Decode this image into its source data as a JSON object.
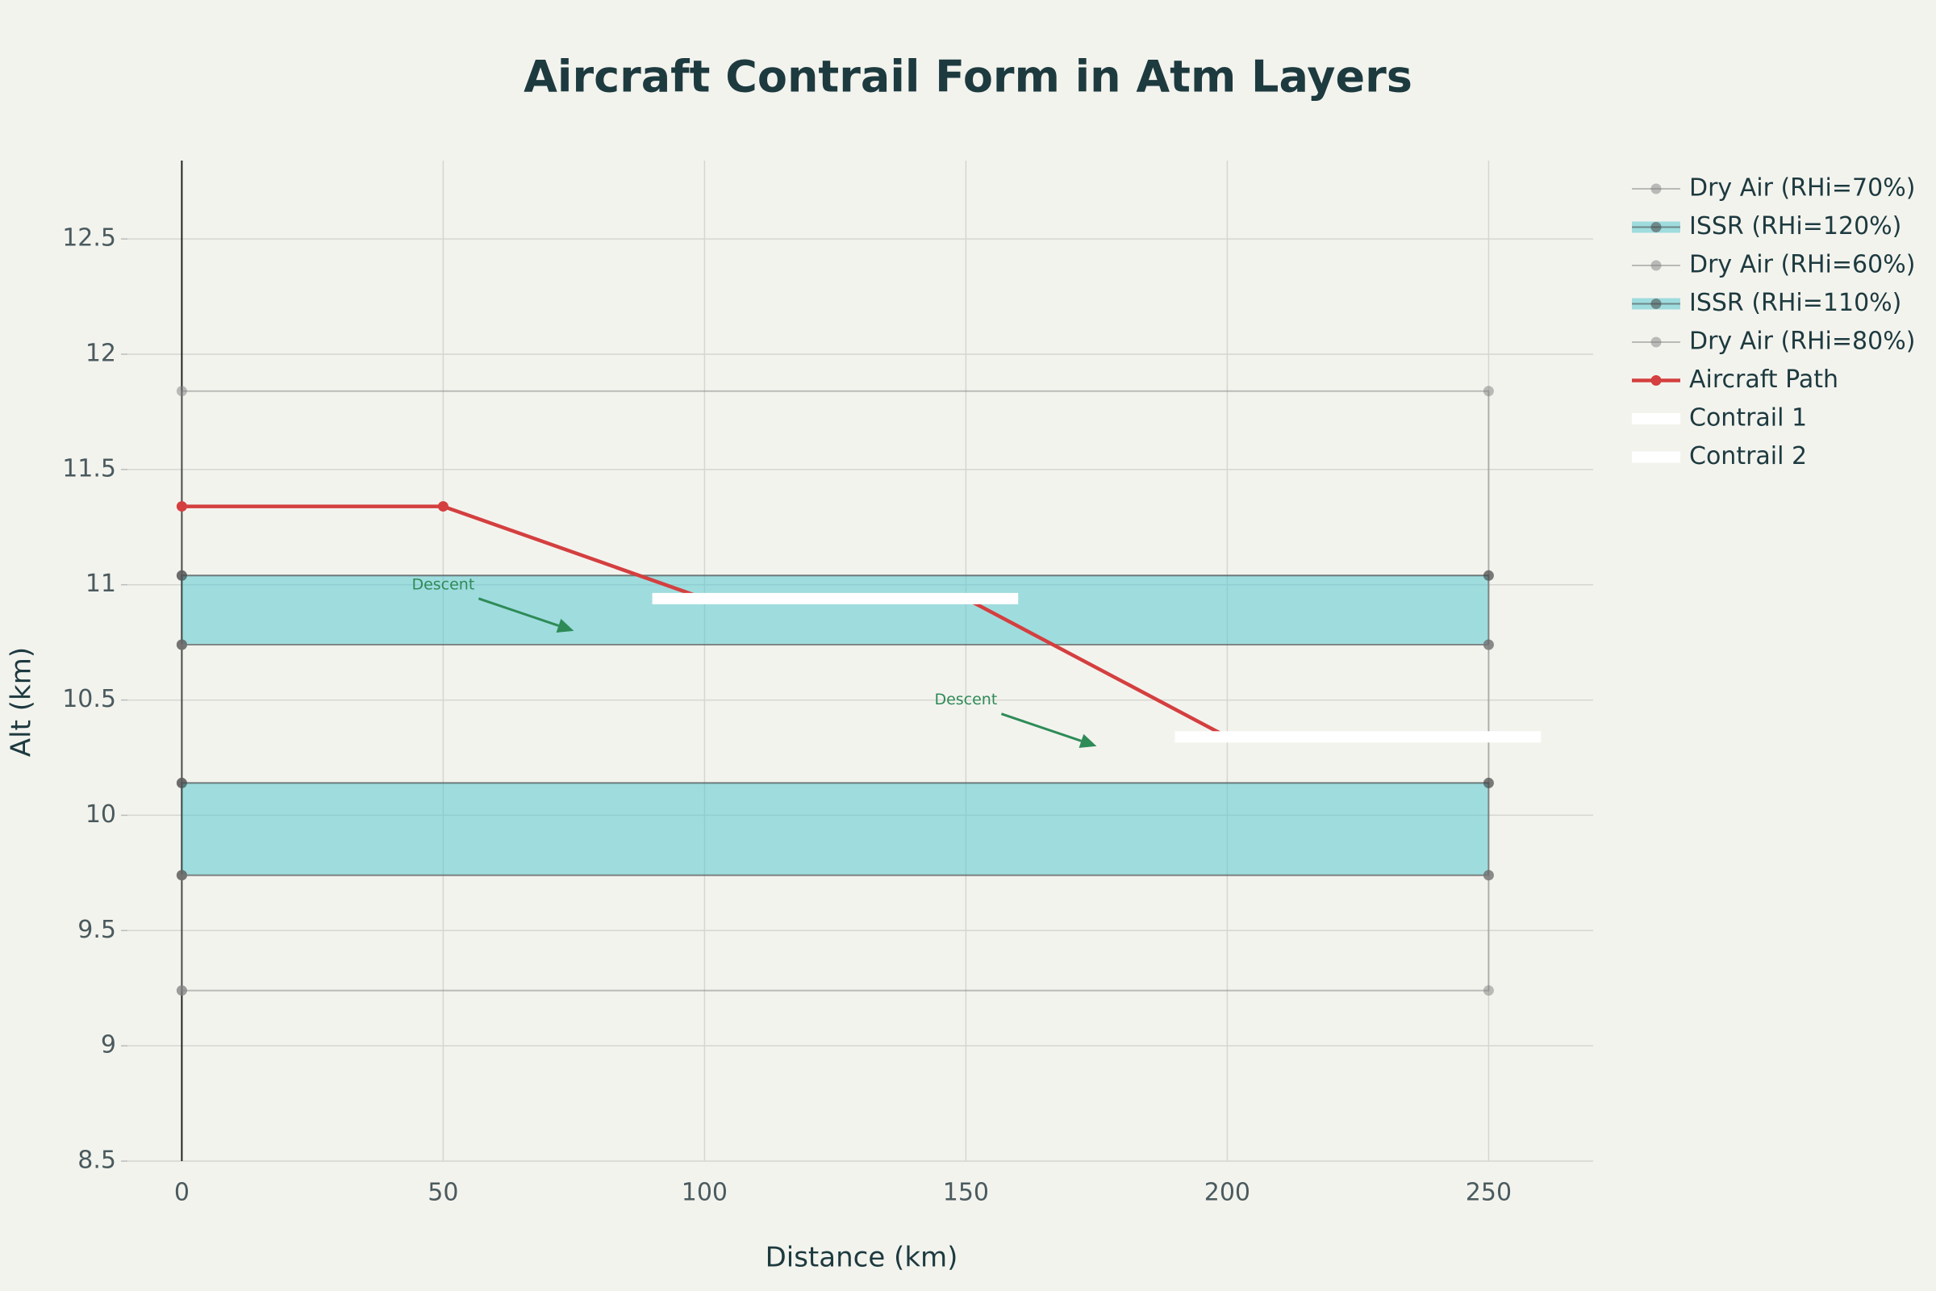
{
  "chart_data": {
    "type": "layered-line",
    "title": "Aircraft Contrail Form in Atm Layers",
    "x_label": "Distance (km)",
    "y_label": "Alt (km)",
    "xlim": [
      -10.4,
      270
    ],
    "ylim": [
      8.5,
      12.84
    ],
    "xticks": [
      0,
      50,
      100,
      150,
      200,
      250
    ],
    "yticks": [
      8.5,
      9,
      9.5,
      10,
      10.5,
      11,
      11.5,
      12,
      12.5
    ],
    "grid": true,
    "series": [
      {
        "name": "Dry Air (RHi=70%)",
        "color": "rgba(128,128,128,0.5)",
        "fill": null,
        "markers": true,
        "x": [
          0,
          250,
          250,
          0,
          0
        ],
        "values": [
          11.04,
          11.04,
          11.84,
          11.84,
          11.04
        ]
      },
      {
        "name": "ISSR (RHi=120%)",
        "color": "rgba(70,70,70,0.55)",
        "fill": "rgba(90,200,210,0.55)",
        "markers": true,
        "x": [
          0,
          250,
          250,
          0,
          0
        ],
        "values": [
          10.74,
          10.74,
          11.04,
          11.04,
          10.74
        ]
      },
      {
        "name": "Dry Air (RHi=60%)",
        "color": "rgba(128,128,128,0.5)",
        "fill": null,
        "markers": true,
        "x": [
          0,
          250,
          250,
          0,
          0
        ],
        "values": [
          10.14,
          10.14,
          10.74,
          10.74,
          10.14
        ]
      },
      {
        "name": "ISSR (RHi=110%)",
        "color": "rgba(70,70,70,0.55)",
        "fill": "rgba(90,200,210,0.55)",
        "markers": true,
        "x": [
          0,
          250,
          250,
          0,
          0
        ],
        "values": [
          9.74,
          9.74,
          10.14,
          10.14,
          9.74
        ]
      },
      {
        "name": "Dry Air (RHi=80%)",
        "color": "rgba(128,128,128,0.5)",
        "fill": null,
        "markers": true,
        "x": [
          0,
          250,
          250,
          0,
          0
        ],
        "values": [
          9.24,
          9.24,
          9.74,
          9.74,
          9.24
        ]
      },
      {
        "name": "Aircraft Path",
        "color": "#d43f3f",
        "fill": null,
        "markers": true,
        "x": [
          0,
          50,
          100,
          150,
          200,
          250
        ],
        "values": [
          11.34,
          11.34,
          10.94,
          10.94,
          10.34,
          10.34
        ]
      },
      {
        "name": "Contrail 1",
        "color": "#ffffff",
        "fill": null,
        "markers": false,
        "x": [
          90,
          160
        ],
        "values": [
          10.94,
          10.94
        ]
      },
      {
        "name": "Contrail 2",
        "color": "#ffffff",
        "fill": null,
        "markers": false,
        "x": [
          190,
          260
        ],
        "values": [
          10.34,
          10.34
        ]
      }
    ],
    "annotations": [
      {
        "text": "Descent",
        "x": 75,
        "y": 10.8,
        "color": "#2e8b57"
      },
      {
        "text": "Descent",
        "x": 175,
        "y": 10.3,
        "color": "#2e8b57"
      }
    ]
  }
}
